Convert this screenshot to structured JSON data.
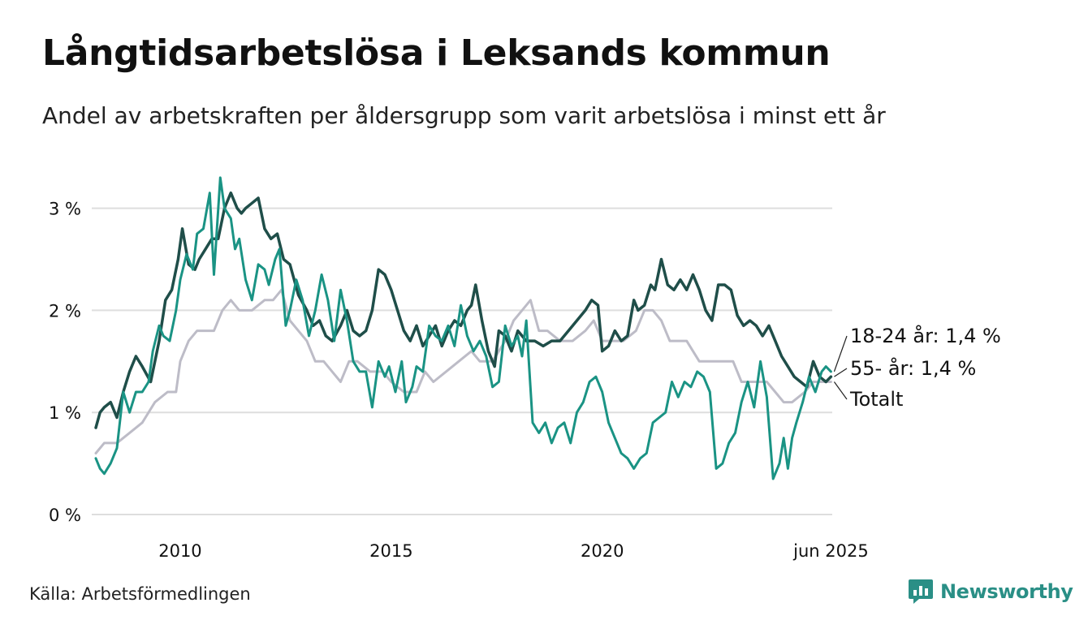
{
  "title": "Långtidsarbetslösa i Leksands kommun",
  "subtitle": "Andel av arbetskraften per åldersgrupp som varit arbetslösa i minst ett år",
  "source": "Källa: Arbetsförmedlingen",
  "brand": {
    "name": "Newsworthy",
    "logo_icon": "bar-chart-speech-icon",
    "color": "#2a8f86"
  },
  "chart_data": {
    "type": "line",
    "title": "Långtidsarbetslösa i Leksands kommun",
    "subtitle": "Andel av arbetskraften per åldersgrupp som varit arbetslösa i minst ett år",
    "xlabel": "",
    "ylabel": "",
    "xlim": [
      2008.0,
      2025.45
    ],
    "ylim": [
      0,
      3.45
    ],
    "y_ticks": [
      {
        "value": 0,
        "label": "0 %"
      },
      {
        "value": 1,
        "label": "1 %"
      },
      {
        "value": 2,
        "label": "2 %"
      },
      {
        "value": 3,
        "label": "3 %"
      }
    ],
    "x_ticks": [
      {
        "value": 2010,
        "label": "2010"
      },
      {
        "value": 2015,
        "label": "2015"
      },
      {
        "value": 2020,
        "label": "2020"
      },
      {
        "value": 2025.42,
        "label": "jun 2025"
      }
    ],
    "grid": "horizontal",
    "legend": "end-labels-right",
    "series": [
      {
        "name": "Totalt",
        "label": "Totalt",
        "color": "#bdbcc7",
        "x": [
          2008.0,
          2008.2,
          2008.5,
          2008.8,
          2009.1,
          2009.4,
          2009.7,
          2009.9,
          2010.0,
          2010.2,
          2010.4,
          2010.6,
          2010.8,
          2011.0,
          2011.2,
          2011.4,
          2011.7,
          2012.0,
          2012.2,
          2012.4,
          2012.6,
          2012.8,
          2013.0,
          2013.2,
          2013.4,
          2013.6,
          2013.8,
          2014.0,
          2014.2,
          2014.5,
          2014.8,
          2015.0,
          2015.3,
          2015.6,
          2015.8,
          2016.0,
          2016.3,
          2016.6,
          2016.9,
          2017.1,
          2017.4,
          2017.7,
          2017.9,
          2018.1,
          2018.3,
          2018.5,
          2018.7,
          2019.0,
          2019.3,
          2019.6,
          2019.8,
          2020.0,
          2020.2,
          2020.5,
          2020.8,
          2021.0,
          2021.2,
          2021.4,
          2021.6,
          2021.8,
          2022.0,
          2022.3,
          2022.6,
          2022.9,
          2023.1,
          2023.3,
          2023.6,
          2023.9,
          2024.1,
          2024.3,
          2024.5,
          2024.8,
          2025.0,
          2025.2,
          2025.42
        ],
        "values": [
          0.6,
          0.7,
          0.7,
          0.8,
          0.9,
          1.1,
          1.2,
          1.2,
          1.5,
          1.7,
          1.8,
          1.8,
          1.8,
          2.0,
          2.1,
          2.0,
          2.0,
          2.1,
          2.1,
          2.2,
          1.9,
          1.8,
          1.7,
          1.5,
          1.5,
          1.4,
          1.3,
          1.5,
          1.5,
          1.4,
          1.4,
          1.3,
          1.2,
          1.2,
          1.4,
          1.3,
          1.4,
          1.5,
          1.6,
          1.5,
          1.5,
          1.7,
          1.9,
          2.0,
          2.1,
          1.8,
          1.8,
          1.7,
          1.7,
          1.8,
          1.9,
          1.7,
          1.7,
          1.7,
          1.8,
          2.0,
          2.0,
          1.9,
          1.7,
          1.7,
          1.7,
          1.5,
          1.5,
          1.5,
          1.5,
          1.3,
          1.3,
          1.3,
          1.2,
          1.1,
          1.1,
          1.2,
          1.3,
          1.3,
          1.3
        ]
      },
      {
        "name": "55- år",
        "label": "55- år: 1,4 %",
        "color": "#1f4e49",
        "x": [
          2008.0,
          2008.1,
          2008.2,
          2008.35,
          2008.5,
          2008.65,
          2008.8,
          2008.95,
          2009.1,
          2009.3,
          2009.5,
          2009.65,
          2009.8,
          2009.95,
          2010.05,
          2010.2,
          2010.35,
          2010.45,
          2010.6,
          2010.75,
          2010.9,
          2011.05,
          2011.2,
          2011.35,
          2011.45,
          2011.55,
          2011.7,
          2011.85,
          2012.0,
          2012.15,
          2012.3,
          2012.45,
          2012.6,
          2012.8,
          2013.0,
          2013.15,
          2013.3,
          2013.45,
          2013.6,
          2013.8,
          2013.95,
          2014.1,
          2014.25,
          2014.4,
          2014.55,
          2014.7,
          2014.85,
          2015.0,
          2015.15,
          2015.3,
          2015.45,
          2015.6,
          2015.75,
          2015.9,
          2016.05,
          2016.2,
          2016.35,
          2016.5,
          2016.65,
          2016.8,
          2016.9,
          2017.0,
          2017.15,
          2017.3,
          2017.45,
          2017.55,
          2017.7,
          2017.85,
          2018.0,
          2018.2,
          2018.4,
          2018.6,
          2018.8,
          2019.0,
          2019.2,
          2019.4,
          2019.6,
          2019.75,
          2019.9,
          2020.0,
          2020.15,
          2020.3,
          2020.45,
          2020.6,
          2020.75,
          2020.85,
          2021.0,
          2021.15,
          2021.25,
          2021.4,
          2021.55,
          2021.7,
          2021.85,
          2022.0,
          2022.15,
          2022.3,
          2022.45,
          2022.6,
          2022.75,
          2022.9,
          2023.05,
          2023.2,
          2023.35,
          2023.5,
          2023.65,
          2023.8,
          2023.95,
          2024.1,
          2024.25,
          2024.4,
          2024.55,
          2024.7,
          2024.85,
          2025.0,
          2025.15,
          2025.3,
          2025.42
        ],
        "values": [
          0.85,
          1.0,
          1.05,
          1.1,
          0.95,
          1.2,
          1.4,
          1.55,
          1.45,
          1.3,
          1.7,
          2.1,
          2.2,
          2.5,
          2.8,
          2.45,
          2.4,
          2.5,
          2.6,
          2.7,
          2.7,
          3.0,
          3.15,
          3.0,
          2.95,
          3.0,
          3.05,
          3.1,
          2.8,
          2.7,
          2.75,
          2.5,
          2.45,
          2.15,
          2.0,
          1.85,
          1.9,
          1.75,
          1.7,
          1.85,
          2.0,
          1.8,
          1.75,
          1.8,
          2.0,
          2.4,
          2.35,
          2.2,
          2.0,
          1.8,
          1.7,
          1.85,
          1.65,
          1.75,
          1.85,
          1.65,
          1.8,
          1.9,
          1.85,
          2.0,
          2.05,
          2.25,
          1.9,
          1.6,
          1.45,
          1.8,
          1.75,
          1.6,
          1.8,
          1.7,
          1.7,
          1.65,
          1.7,
          1.7,
          1.8,
          1.9,
          2.0,
          2.1,
          2.05,
          1.6,
          1.65,
          1.8,
          1.7,
          1.75,
          2.1,
          2.0,
          2.05,
          2.25,
          2.2,
          2.5,
          2.25,
          2.2,
          2.3,
          2.2,
          2.35,
          2.2,
          2.0,
          1.9,
          2.25,
          2.25,
          2.2,
          1.95,
          1.85,
          1.9,
          1.85,
          1.75,
          1.85,
          1.7,
          1.55,
          1.45,
          1.35,
          1.3,
          1.25,
          1.5,
          1.35,
          1.3,
          1.35
        ]
      },
      {
        "name": "18-24 år",
        "label": "18-24 år: 1,4 %",
        "color": "#1a9384",
        "x": [
          2008.0,
          2008.1,
          2008.2,
          2008.35,
          2008.5,
          2008.65,
          2008.8,
          2008.95,
          2009.1,
          2009.25,
          2009.35,
          2009.5,
          2009.6,
          2009.75,
          2009.9,
          2010.0,
          2010.15,
          2010.3,
          2010.4,
          2010.55,
          2010.7,
          2010.8,
          2010.95,
          2011.05,
          2011.2,
          2011.3,
          2011.4,
          2011.55,
          2011.7,
          2011.85,
          2012.0,
          2012.1,
          2012.25,
          2012.35,
          2012.5,
          2012.6,
          2012.75,
          2012.9,
          2013.05,
          2013.2,
          2013.35,
          2013.5,
          2013.65,
          2013.8,
          2013.95,
          2014.1,
          2014.25,
          2014.4,
          2014.55,
          2014.7,
          2014.85,
          2014.95,
          2015.1,
          2015.25,
          2015.35,
          2015.5,
          2015.6,
          2015.75,
          2015.9,
          2016.05,
          2016.2,
          2016.35,
          2016.5,
          2016.65,
          2016.8,
          2016.95,
          2017.1,
          2017.25,
          2017.4,
          2017.55,
          2017.7,
          2017.85,
          2018.0,
          2018.1,
          2018.2,
          2018.35,
          2018.5,
          2018.65,
          2018.8,
          2018.95,
          2019.1,
          2019.25,
          2019.4,
          2019.55,
          2019.7,
          2019.85,
          2020.0,
          2020.15,
          2020.3,
          2020.45,
          2020.6,
          2020.75,
          2020.9,
          2021.05,
          2021.2,
          2021.35,
          2021.5,
          2021.65,
          2021.8,
          2021.95,
          2022.1,
          2022.25,
          2022.4,
          2022.55,
          2022.7,
          2022.85,
          2023.0,
          2023.15,
          2023.3,
          2023.45,
          2023.6,
          2023.75,
          2023.9,
          2024.05,
          2024.2,
          2024.3,
          2024.4,
          2024.5,
          2024.6,
          2024.75,
          2024.9,
          2025.05,
          2025.2,
          2025.3,
          2025.42
        ],
        "values": [
          0.55,
          0.45,
          0.4,
          0.5,
          0.65,
          1.2,
          1.0,
          1.2,
          1.2,
          1.3,
          1.6,
          1.85,
          1.75,
          1.7,
          2.0,
          2.3,
          2.55,
          2.4,
          2.75,
          2.8,
          3.15,
          2.35,
          3.3,
          3.0,
          2.9,
          2.6,
          2.7,
          2.3,
          2.1,
          2.45,
          2.4,
          2.25,
          2.5,
          2.6,
          1.85,
          2.0,
          2.3,
          2.1,
          1.75,
          2.0,
          2.35,
          2.1,
          1.7,
          2.2,
          1.9,
          1.5,
          1.4,
          1.4,
          1.05,
          1.5,
          1.35,
          1.45,
          1.2,
          1.5,
          1.1,
          1.25,
          1.45,
          1.4,
          1.85,
          1.75,
          1.7,
          1.85,
          1.65,
          2.05,
          1.75,
          1.6,
          1.7,
          1.55,
          1.25,
          1.3,
          1.85,
          1.65,
          1.75,
          1.55,
          1.9,
          0.9,
          0.8,
          0.9,
          0.7,
          0.85,
          0.9,
          0.7,
          1.0,
          1.1,
          1.3,
          1.35,
          1.2,
          0.9,
          0.75,
          0.6,
          0.55,
          0.45,
          0.55,
          0.6,
          0.9,
          0.95,
          1.0,
          1.3,
          1.15,
          1.3,
          1.25,
          1.4,
          1.35,
          1.2,
          0.45,
          0.5,
          0.7,
          0.8,
          1.1,
          1.3,
          1.05,
          1.5,
          1.15,
          0.35,
          0.5,
          0.75,
          0.45,
          0.75,
          0.9,
          1.1,
          1.35,
          1.2,
          1.4,
          1.45,
          1.4
        ]
      }
    ]
  }
}
